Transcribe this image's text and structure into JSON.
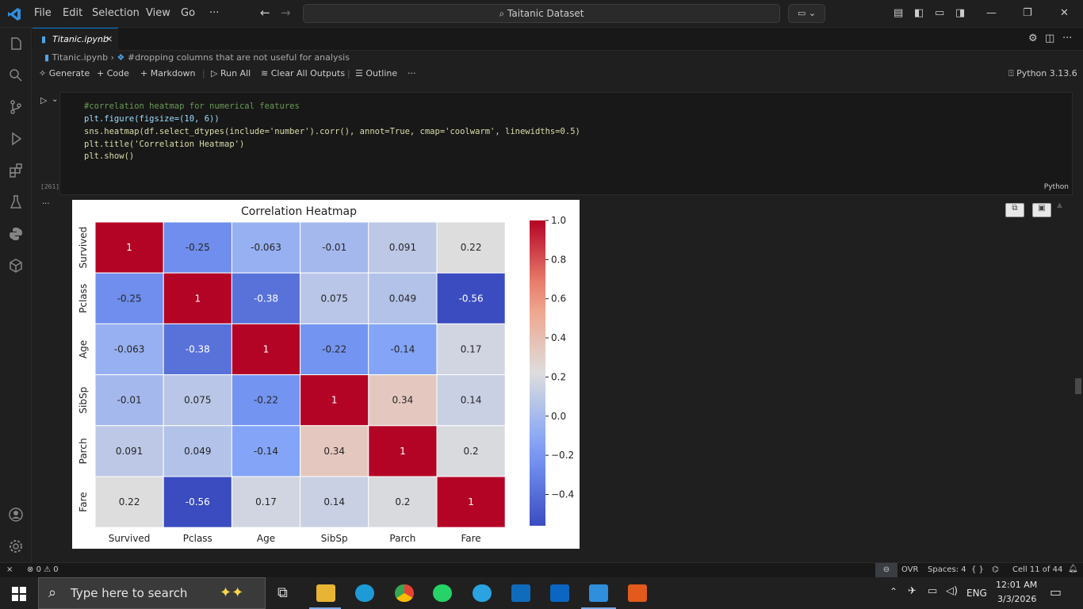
{
  "menu": {
    "file": "File",
    "edit": "Edit",
    "selection": "Selection",
    "view": "View",
    "go": "Go",
    "more": "···"
  },
  "search": {
    "text": "Taitanic Dataset"
  },
  "tab": {
    "label": "Titanic.ipynb"
  },
  "breadcrumb": {
    "file": "Titanic.ipynb",
    "section": "#dropping columns that are not useful for analysis"
  },
  "toolbar": {
    "generate": "Generate",
    "code": "Code",
    "markdown": "Markdown",
    "run_all": "Run All",
    "clear": "Clear All Outputs",
    "outline": "Outline",
    "more": "···",
    "kernel": "Python 3.13.6"
  },
  "cell": {
    "exec_count": "[261]",
    "language": "Python",
    "lines": [
      "#correlation heatmap for numerical features",
      "plt.figure(figsize=(10, 6))",
      "sns.heatmap(df.select_dtypes(include='number').corr(), annot=True, cmap='coolwarm', linewidths=0.5)",
      "plt.title('Correlation Heatmap')",
      "plt.show()"
    ],
    "output_more": "···"
  },
  "chart_data": {
    "type": "heatmap",
    "title": "Correlation Heatmap",
    "labels": [
      "Survived",
      "Pclass",
      "Age",
      "SibSp",
      "Parch",
      "Fare"
    ],
    "matrix": [
      [
        1,
        -0.25,
        -0.063,
        -0.01,
        0.091,
        0.22
      ],
      [
        -0.25,
        1,
        -0.38,
        0.075,
        0.049,
        -0.56
      ],
      [
        -0.063,
        -0.38,
        1,
        -0.22,
        -0.14,
        0.17
      ],
      [
        -0.01,
        0.075,
        -0.22,
        1,
        0.34,
        0.14
      ],
      [
        0.091,
        0.049,
        -0.14,
        0.34,
        1,
        0.2
      ],
      [
        0.22,
        -0.56,
        0.17,
        0.14,
        0.2,
        1
      ]
    ],
    "annotations": [
      [
        "1",
        "-0.25",
        "-0.063",
        "-0.01",
        "0.091",
        "0.22"
      ],
      [
        "-0.25",
        "1",
        "-0.38",
        "0.075",
        "0.049",
        "-0.56"
      ],
      [
        "-0.063",
        "-0.38",
        "1",
        "-0.22",
        "-0.14",
        "0.17"
      ],
      [
        "-0.01",
        "0.075",
        "-0.22",
        "1",
        "0.34",
        "0.14"
      ],
      [
        "0.091",
        "0.049",
        "-0.14",
        "0.34",
        "1",
        "0.2"
      ],
      [
        "0.22",
        "-0.56",
        "0.17",
        "0.14",
        "0.2",
        "1"
      ]
    ],
    "colormap": "coolwarm",
    "colorbar_range": [
      -0.56,
      1.0
    ],
    "colorbar_ticks": [
      1.0,
      0.8,
      0.6,
      0.4,
      0.2,
      0.0,
      -0.2,
      -0.4
    ],
    "colorbar_tick_labels": [
      "1.0",
      "0.8",
      "0.6",
      "0.4",
      "0.2",
      "0.0",
      "−0.2",
      "−0.4"
    ]
  },
  "status": {
    "errors": "0",
    "warnings": "0",
    "ovr": "OVR",
    "spaces": "Spaces: 4",
    "braces": "{ }",
    "cell": "Cell 11 of 44"
  },
  "taskbar": {
    "search_placeholder": "Type here to search",
    "lang": "ENG",
    "time": "12:01 AM",
    "date": "3/3/2026"
  },
  "colors": {
    "accent": "#0078d4",
    "comment": "#6a9955",
    "string": "#ce9178",
    "keyword": "#569cd6",
    "func": "#dcdcaa",
    "var": "#9cdcfe",
    "number": "#b5cea8"
  }
}
